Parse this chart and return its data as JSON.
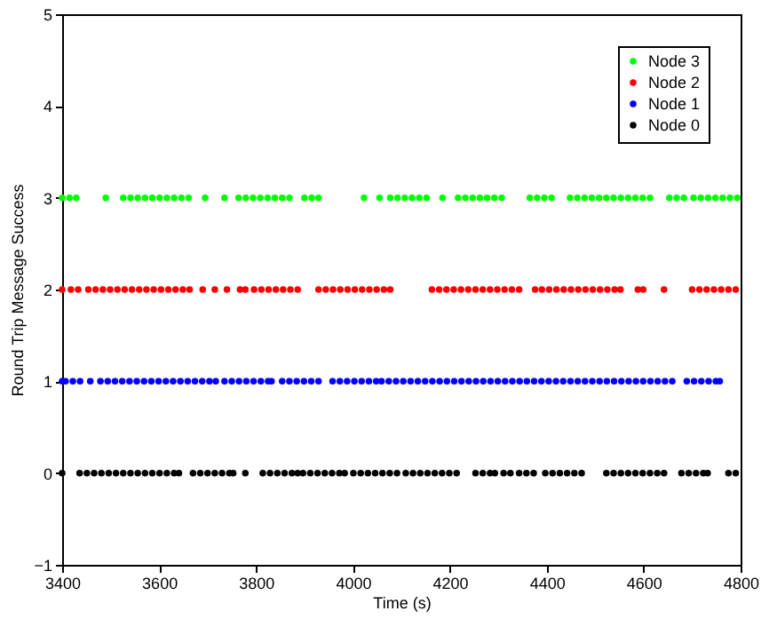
{
  "chart_data": {
    "type": "scatter",
    "xlabel": "Time (s)",
    "ylabel": "Round Trip Message Success",
    "xlim": [
      3400,
      4800
    ],
    "xticks": [
      3400,
      3600,
      3800,
      4000,
      4200,
      4400,
      4600,
      4800
    ],
    "ylim": [
      -1,
      5
    ],
    "yticks": [
      -1,
      0,
      1,
      2,
      3,
      4,
      5
    ],
    "grid": false,
    "legend": "top right",
    "marker": "circle",
    "series": [
      {
        "name": "Node 3",
        "color": "#00ff00",
        "x": [
          3400,
          3415,
          3429,
          3490,
          3526,
          3541,
          3556,
          3571,
          3586,
          3601,
          3616,
          3631,
          3646,
          3661,
          3695,
          3735,
          3764,
          3779,
          3794,
          3809,
          3824,
          3839,
          3854,
          3869,
          3900,
          3915,
          3929,
          4023,
          4055,
          4077,
          4092,
          4107,
          4122,
          4137,
          4152,
          4185,
          4217,
          4232,
          4247,
          4262,
          4277,
          4292,
          4307,
          4365,
          4380,
          4395,
          4410,
          4448,
          4463,
          4478,
          4493,
          4508,
          4523,
          4538,
          4553,
          4568,
          4583,
          4598,
          4613,
          4653,
          4668,
          4683,
          4703,
          4718,
          4733,
          4748,
          4763,
          4778,
          4793
        ],
        "values": [
          3,
          3,
          3,
          3,
          3,
          3,
          3,
          3,
          3,
          3,
          3,
          3,
          3,
          3,
          3,
          3,
          3,
          3,
          3,
          3,
          3,
          3,
          3,
          3,
          3,
          3,
          3,
          3,
          3,
          3,
          3,
          3,
          3,
          3,
          3,
          3,
          3,
          3,
          3,
          3,
          3,
          3,
          3,
          3,
          3,
          3,
          3,
          3,
          3,
          3,
          3,
          3,
          3,
          3,
          3,
          3,
          3,
          3,
          3,
          3,
          3,
          3,
          3,
          3,
          3,
          3,
          3,
          3,
          3
        ]
      },
      {
        "name": "Node 2",
        "color": "#ff0000",
        "x": [
          3400,
          3418,
          3433,
          3454,
          3469,
          3484,
          3499,
          3514,
          3529,
          3544,
          3559,
          3574,
          3589,
          3604,
          3619,
          3634,
          3649,
          3663,
          3690,
          3715,
          3740,
          3767,
          3778,
          3796,
          3811,
          3826,
          3841,
          3856,
          3871,
          3886,
          3929,
          3944,
          3959,
          3974,
          3989,
          4004,
          4019,
          4034,
          4049,
          4064,
          4077,
          4163,
          4178,
          4193,
          4208,
          4223,
          4238,
          4253,
          4268,
          4283,
          4298,
          4313,
          4328,
          4343,
          4376,
          4390,
          4405,
          4420,
          4435,
          4450,
          4465,
          4480,
          4495,
          4510,
          4525,
          4540,
          4552,
          4588,
          4599,
          4642,
          4700,
          4715,
          4730,
          4745,
          4760,
          4775,
          4790
        ],
        "values": [
          2,
          2,
          2,
          2,
          2,
          2,
          2,
          2,
          2,
          2,
          2,
          2,
          2,
          2,
          2,
          2,
          2,
          2,
          2,
          2,
          2,
          2,
          2,
          2,
          2,
          2,
          2,
          2,
          2,
          2,
          2,
          2,
          2,
          2,
          2,
          2,
          2,
          2,
          2,
          2,
          2,
          2,
          2,
          2,
          2,
          2,
          2,
          2,
          2,
          2,
          2,
          2,
          2,
          2,
          2,
          2,
          2,
          2,
          2,
          2,
          2,
          2,
          2,
          2,
          2,
          2,
          2,
          2,
          2,
          2,
          2,
          2,
          2,
          2,
          2,
          2,
          2
        ]
      },
      {
        "name": "Node 1",
        "color": "#0000ff",
        "x": [
          3400,
          3407,
          3422,
          3437,
          3458,
          3479,
          3494,
          3509,
          3524,
          3539,
          3554,
          3569,
          3584,
          3599,
          3614,
          3629,
          3644,
          3659,
          3674,
          3689,
          3704,
          3717,
          3735,
          3750,
          3765,
          3780,
          3795,
          3810,
          3825,
          3832,
          3854,
          3869,
          3884,
          3899,
          3914,
          3929,
          3958,
          3973,
          3988,
          4003,
          4018,
          4033,
          4048,
          4059,
          4074,
          4089,
          4104,
          4119,
          4134,
          4149,
          4164,
          4179,
          4194,
          4209,
          4224,
          4239,
          4254,
          4269,
          4284,
          4299,
          4314,
          4329,
          4344,
          4359,
          4374,
          4389,
          4404,
          4419,
          4434,
          4449,
          4464,
          4479,
          4494,
          4509,
          4524,
          4539,
          4554,
          4569,
          4584,
          4599,
          4614,
          4629,
          4644,
          4659,
          4689,
          4704,
          4719,
          4734,
          4749,
          4757
        ],
        "values": [
          1,
          1,
          1,
          1,
          1,
          1,
          1,
          1,
          1,
          1,
          1,
          1,
          1,
          1,
          1,
          1,
          1,
          1,
          1,
          1,
          1,
          1,
          1,
          1,
          1,
          1,
          1,
          1,
          1,
          1,
          1,
          1,
          1,
          1,
          1,
          1,
          1,
          1,
          1,
          1,
          1,
          1,
          1,
          1,
          1,
          1,
          1,
          1,
          1,
          1,
          1,
          1,
          1,
          1,
          1,
          1,
          1,
          1,
          1,
          1,
          1,
          1,
          1,
          1,
          1,
          1,
          1,
          1,
          1,
          1,
          1,
          1,
          1,
          1,
          1,
          1,
          1,
          1,
          1,
          1,
          1,
          1,
          1,
          1,
          1,
          1,
          1,
          1,
          1,
          1
        ]
      },
      {
        "name": "Node 0",
        "color": "#000000",
        "x": [
          3400,
          3436,
          3451,
          3466,
          3481,
          3496,
          3511,
          3526,
          3541,
          3556,
          3571,
          3586,
          3601,
          3616,
          3631,
          3641,
          3670,
          3685,
          3700,
          3715,
          3730,
          3745,
          3753,
          3778,
          3814,
          3829,
          3844,
          3859,
          3874,
          3886,
          3897,
          3912,
          3927,
          3942,
          3957,
          3972,
          3983,
          4001,
          4016,
          4031,
          4046,
          4061,
          4076,
          4091,
          4109,
          4124,
          4139,
          4154,
          4169,
          4184,
          4199,
          4214,
          4253,
          4268,
          4283,
          4293,
          4311,
          4325,
          4343,
          4358,
          4373,
          4397,
          4412,
          4427,
          4442,
          4457,
          4472,
          4523,
          4538,
          4553,
          4568,
          4583,
          4598,
          4613,
          4628,
          4642,
          4678,
          4693,
          4708,
          4723,
          4732,
          4775,
          4790
        ],
        "values": [
          0,
          0,
          0,
          0,
          0,
          0,
          0,
          0,
          0,
          0,
          0,
          0,
          0,
          0,
          0,
          0,
          0,
          0,
          0,
          0,
          0,
          0,
          0,
          0,
          0,
          0,
          0,
          0,
          0,
          0,
          0,
          0,
          0,
          0,
          0,
          0,
          0,
          0,
          0,
          0,
          0,
          0,
          0,
          0,
          0,
          0,
          0,
          0,
          0,
          0,
          0,
          0,
          0,
          0,
          0,
          0,
          0,
          0,
          0,
          0,
          0,
          0,
          0,
          0,
          0,
          0,
          0,
          0,
          0,
          0,
          0,
          0,
          0,
          0,
          0,
          0,
          0,
          0,
          0,
          0,
          0,
          0,
          0
        ]
      }
    ]
  }
}
